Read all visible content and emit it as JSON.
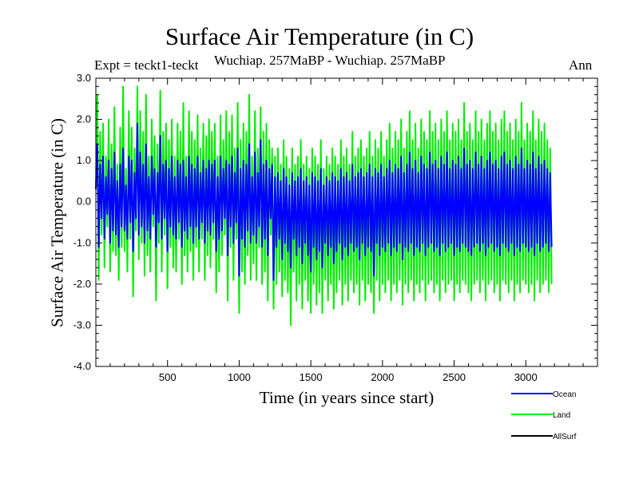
{
  "chart_data": {
    "type": "line",
    "title": "Surface Air Temperature (in C)",
    "subtitle": "Wuchiap. 257MaBP - Wuchiap. 257MaBP",
    "experiment_label": "Expt = teckt1-teckt",
    "season_label": "Ann",
    "xlabel": "Time (in years since start)",
    "ylabel": "Surface Air Temperature (in C)",
    "xlim": [
      0,
      3500
    ],
    "ylim": [
      -4.0,
      3.0
    ],
    "x_ticks": [
      500,
      1000,
      1500,
      2000,
      2500,
      3000
    ],
    "y_ticks": [
      3.0,
      2.0,
      1.0,
      0.0,
      -1.0,
      -2.0,
      -3.0,
      -4.0
    ],
    "y_tick_labels": [
      "3.0",
      "2.0",
      "1.0",
      "0.0",
      "-1.0",
      "-2.0",
      "-3.0",
      "-4.0"
    ],
    "x_step": 10,
    "series": [
      {
        "name": "Ocean",
        "color": "#0000ff",
        "values": [
          0.3,
          1.4,
          -1.1,
          0.9,
          -0.4,
          1.1,
          -0.9,
          0.6,
          -0.3,
          1.0,
          -1.0,
          0.8,
          -0.7,
          1.2,
          -0.8,
          0.5,
          -1.1,
          0.9,
          -0.6,
          1.3,
          -0.7,
          0.4,
          -0.9,
          1.1,
          -0.5,
          1.0,
          -1.2,
          0.7,
          -0.4,
          1.9,
          -0.8,
          1.2,
          -0.6,
          0.9,
          -1.0,
          1.4,
          -0.7,
          0.6,
          -0.9,
          1.1,
          -0.3,
          0.8,
          -1.1,
          0.7,
          -0.5,
          1.6,
          -0.9,
          0.9,
          -0.4,
          1.0,
          -1.2,
          0.8,
          -0.6,
          1.1,
          -0.8,
          0.6,
          -0.9,
          1.0,
          -0.5,
          0.9,
          -1.1,
          1.0,
          -0.7,
          0.6,
          -0.9,
          1.1,
          -0.6,
          0.9,
          -1.0,
          0.8,
          -0.6,
          1.1,
          -0.9,
          0.7,
          -0.5,
          1.0,
          -1.0,
          0.8,
          -0.7,
          1.0,
          -0.8,
          0.9,
          -0.5,
          1.0,
          -1.2,
          0.6,
          -0.9,
          1.1,
          -0.7,
          0.8,
          -0.4,
          1.0,
          -1.3,
          0.9,
          -0.6,
          1.1,
          -1.0,
          0.7,
          -0.5,
          1.3,
          -1.8,
          0.8,
          -0.9,
          1.0,
          -1.1,
          0.9,
          -0.7,
          1.4,
          -1.0,
          0.6,
          -0.8,
          1.2,
          -1.0,
          0.7,
          -0.6,
          1.5,
          -1.1,
          0.9,
          -0.9,
          1.0,
          -1.3,
          0.8,
          -0.4,
          0.9,
          -1.9,
          0.6,
          -1.1,
          0.7,
          -0.9,
          0.5,
          -1.4,
          0.8,
          -1.0,
          0.6,
          -1.2,
          0.4,
          -1.6,
          0.7,
          -0.9,
          0.5,
          -1.3,
          0.6,
          -1.1,
          0.8,
          -1.5,
          0.5,
          -1.0,
          0.6,
          -1.3,
          0.4,
          -1.7,
          0.7,
          -1.1,
          0.6,
          -1.4,
          0.5,
          -1.2,
          0.8,
          -1.6,
          0.4,
          -1.0,
          0.6,
          -1.3,
          0.5,
          -1.1,
          0.7,
          -1.5,
          0.6,
          -1.2,
          0.5,
          -1.0,
          0.8,
          -1.4,
          0.6,
          -1.1,
          0.7,
          -1.3,
          0.5,
          -1.0,
          0.9,
          -1.2,
          0.6,
          -1.1,
          0.7,
          -1.4,
          0.8,
          -1.0,
          0.6,
          -1.3,
          0.7,
          -1.1,
          0.9,
          -1.2,
          0.6,
          -1.8,
          0.8,
          -1.0,
          0.7,
          -1.3,
          0.9,
          -1.1,
          0.6,
          -1.2,
          0.8,
          -1.0,
          1.0,
          -1.3,
          0.7,
          -1.1,
          0.9,
          -1.2,
          0.8,
          -1.0,
          1.1,
          -1.4,
          0.7,
          -1.1,
          0.9,
          -1.2,
          1.2,
          -1.0,
          0.8,
          -1.3,
          1.0,
          -1.1,
          0.7,
          -1.2,
          1.1,
          -1.0,
          0.9,
          -1.3,
          0.8,
          -1.1,
          1.2,
          -1.0,
          0.9,
          -1.2,
          1.0,
          -1.1,
          0.8,
          -1.3,
          1.1,
          -1.0,
          0.9,
          -1.2,
          1.2,
          -1.1,
          0.8,
          -1.0,
          1.0,
          -1.3,
          0.9,
          -1.1,
          1.1,
          -1.2,
          0.8,
          -1.0,
          1.3,
          -1.1,
          0.9,
          -1.2,
          1.0,
          -1.3,
          0.8,
          -1.1,
          1.2,
          -1.0,
          0.9,
          -1.2,
          1.1,
          -1.0,
          0.8,
          -1.3,
          1.0,
          -1.1,
          1.2,
          -1.0,
          0.9,
          -1.2,
          1.0,
          -1.1,
          0.8,
          -1.3,
          1.1,
          -1.0,
          1.2,
          -1.1,
          0.9,
          -1.2,
          1.0,
          -1.0,
          0.8,
          -1.3,
          1.1,
          -1.1,
          0.9,
          -1.2,
          1.3,
          -1.0,
          0.8,
          -1.1,
          1.0,
          -1.2,
          0.9,
          -1.1,
          1.2,
          -1.3,
          0.8,
          -1.0,
          1.1,
          -1.2,
          0.9,
          -1.1,
          1.0,
          -1.0,
          0.8,
          -1.2,
          0.7,
          -1.1
        ],
        "data_name": "ocean-series-line"
      },
      {
        "name": "Land",
        "color": "#00ee00",
        "values": [
          0.4,
          2.6,
          -1.9,
          1.7,
          -0.8,
          1.9,
          -1.6,
          1.1,
          -0.6,
          2.0,
          -1.7,
          1.4,
          -1.2,
          2.3,
          -1.3,
          0.9,
          -1.9,
          1.8,
          -1.1,
          2.8,
          -1.2,
          0.8,
          -1.7,
          2.2,
          -0.9,
          1.8,
          -2.3,
          1.3,
          -0.7,
          2.8,
          -1.4,
          2.2,
          -1.0,
          1.7,
          -1.8,
          2.6,
          -1.3,
          1.1,
          -1.7,
          2.0,
          -0.6,
          1.6,
          -2.4,
          1.4,
          -1.0,
          2.7,
          -1.7,
          1.7,
          -0.8,
          1.9,
          -2.1,
          1.5,
          -1.1,
          2.0,
          -1.6,
          1.1,
          -1.7,
          1.9,
          -0.9,
          1.7,
          -2.0,
          2.4,
          -1.3,
          1.1,
          -1.7,
          2.2,
          -1.2,
          1.7,
          -1.9,
          1.5,
          -1.1,
          2.1,
          -1.7,
          1.3,
          -0.9,
          1.9,
          -1.9,
          1.6,
          -1.3,
          2.0,
          -1.6,
          1.7,
          -0.9,
          1.9,
          -2.2,
          1.1,
          -1.7,
          2.1,
          -1.3,
          1.5,
          -0.8,
          2.2,
          -2.4,
          1.7,
          -1.1,
          2.1,
          -1.9,
          1.3,
          -0.9,
          2.4,
          -2.7,
          1.5,
          -1.7,
          1.9,
          -2.0,
          1.7,
          -1.3,
          2.6,
          -1.9,
          1.1,
          -1.5,
          2.2,
          -1.9,
          1.3,
          -1.1,
          2.3,
          -2.0,
          1.7,
          -1.7,
          1.9,
          -2.4,
          1.5,
          -0.8,
          1.3,
          -2.6,
          1.1,
          -2.0,
          1.3,
          -1.7,
          0.9,
          -2.3,
          1.5,
          -1.9,
          1.1,
          -2.2,
          0.8,
          -3.0,
          1.3,
          -1.7,
          0.9,
          -2.4,
          1.1,
          -2.0,
          1.5,
          -2.6,
          0.9,
          -1.9,
          1.1,
          -2.4,
          0.8,
          -2.7,
          1.3,
          -2.0,
          1.1,
          -2.5,
          0.9,
          -2.2,
          1.5,
          -2.7,
          0.8,
          -1.9,
          1.1,
          -2.4,
          0.9,
          -2.0,
          1.3,
          -2.6,
          1.1,
          -2.2,
          0.9,
          -1.9,
          1.5,
          -2.5,
          1.1,
          -2.0,
          1.3,
          -2.4,
          0.9,
          -1.9,
          1.7,
          -2.2,
          1.1,
          -2.0,
          1.3,
          -2.5,
          1.5,
          -1.9,
          1.1,
          -2.4,
          1.3,
          -2.0,
          1.7,
          -2.2,
          1.1,
          -2.7,
          1.5,
          -1.9,
          1.3,
          -2.4,
          1.7,
          -2.0,
          1.1,
          -2.2,
          1.5,
          -1.9,
          1.9,
          -2.4,
          1.3,
          -2.0,
          1.7,
          -2.2,
          1.5,
          -1.9,
          2.0,
          -2.5,
          1.3,
          -2.0,
          1.7,
          -2.2,
          2.2,
          -1.9,
          1.5,
          -2.4,
          1.9,
          -2.0,
          1.3,
          -2.2,
          2.0,
          -1.9,
          1.7,
          -2.4,
          1.5,
          -2.0,
          2.2,
          -1.9,
          1.7,
          -2.2,
          1.9,
          -2.0,
          1.5,
          -2.4,
          2.0,
          -1.9,
          1.7,
          -2.2,
          2.2,
          -2.0,
          1.5,
          -1.9,
          1.9,
          -2.4,
          1.7,
          -2.0,
          2.0,
          -2.2,
          1.5,
          -1.9,
          2.4,
          -2.0,
          1.7,
          -2.2,
          1.9,
          -2.4,
          1.5,
          -2.0,
          2.2,
          -1.9,
          1.7,
          -2.2,
          2.0,
          -1.9,
          1.5,
          -2.4,
          1.9,
          -2.0,
          2.2,
          -1.9,
          1.7,
          -2.2,
          1.9,
          -2.0,
          1.5,
          -2.4,
          2.0,
          -1.9,
          2.2,
          -2.0,
          1.7,
          -2.2,
          1.9,
          -1.9,
          1.5,
          -2.4,
          2.0,
          -2.0,
          1.7,
          -2.2,
          2.4,
          -1.9,
          1.5,
          -2.0,
          1.9,
          -2.2,
          1.7,
          -2.0,
          2.2,
          -2.4,
          1.5,
          -1.9,
          2.0,
          -2.2,
          1.7,
          -2.0,
          1.9,
          -1.9,
          1.5,
          -2.2,
          1.3,
          -2.0
        ],
        "data_name": "land-series-line"
      },
      {
        "name": "AllSurf",
        "color": "#000000",
        "values": [],
        "data_name": "allsurf-series-line"
      }
    ]
  }
}
